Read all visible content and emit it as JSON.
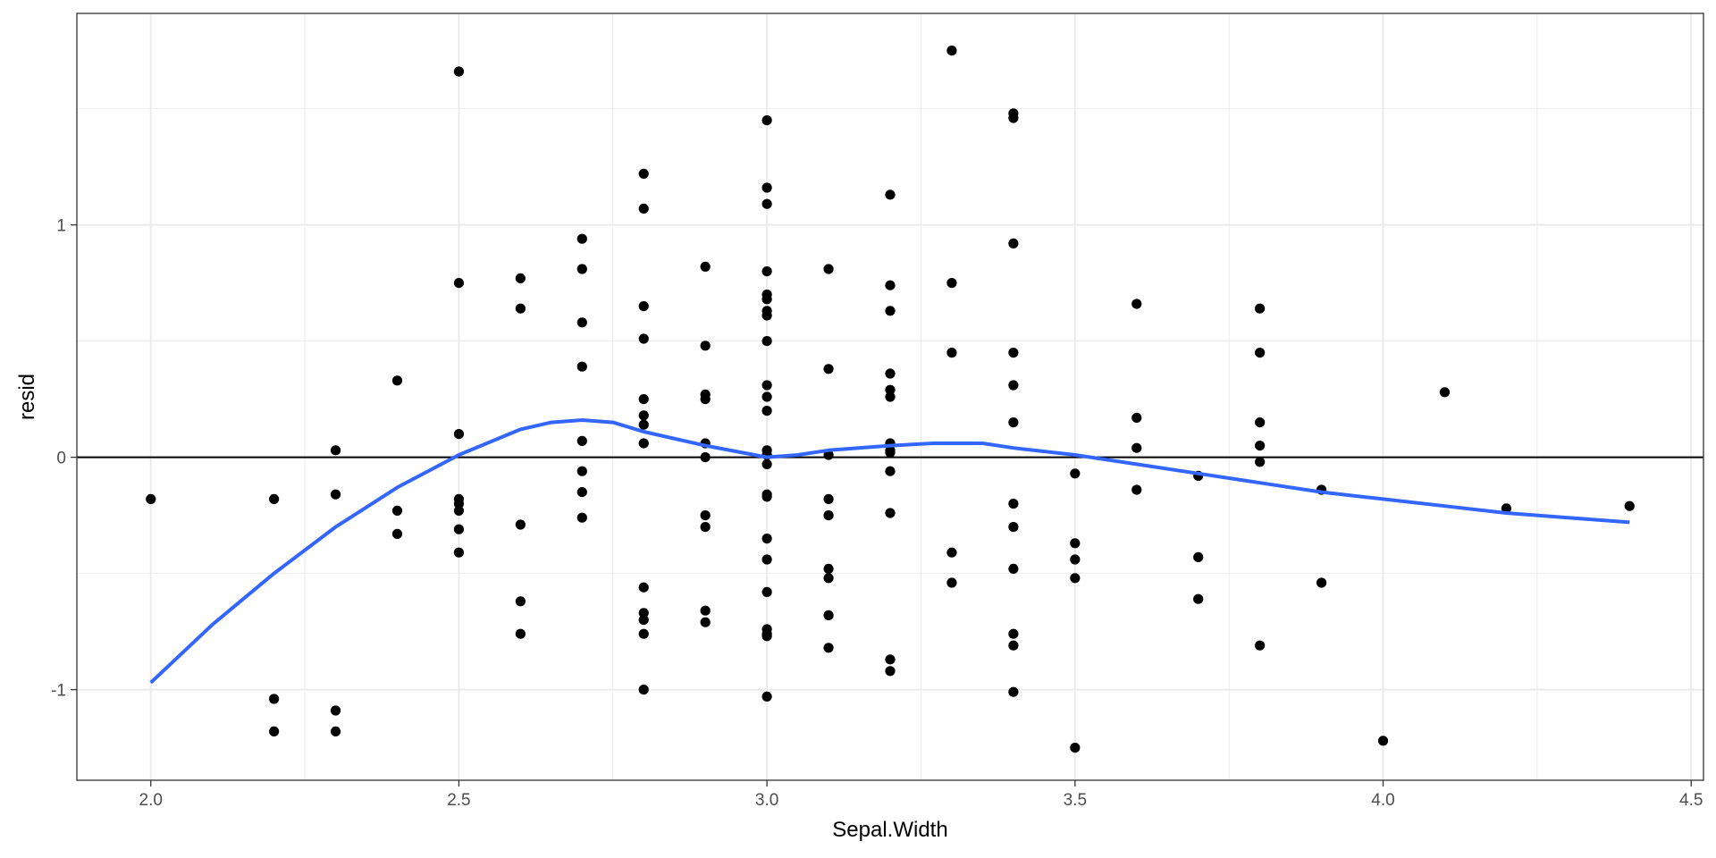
{
  "chart_data": {
    "type": "scatter",
    "title": "",
    "xlabel": "Sepal.Width",
    "ylabel": "resid",
    "xlim": [
      1.88,
      4.52
    ],
    "ylim": [
      -1.39,
      1.91
    ],
    "x_ticks": [
      2.0,
      2.5,
      3.0,
      3.5,
      4.0,
      4.5
    ],
    "x_tick_labels": [
      "2.0",
      "2.5",
      "3.0",
      "3.5",
      "4.0",
      "4.5"
    ],
    "y_ticks": [
      -1,
      0,
      1
    ],
    "y_tick_labels": [
      "-1",
      "0",
      "1"
    ],
    "grid": true,
    "reference_line_y": 0,
    "colors": {
      "points": "#000000",
      "smooth": "#3366ff",
      "grid": "#ebebeb",
      "refline": "#000000"
    },
    "series": [
      {
        "type": "scatter",
        "points": [
          [
            2.0,
            -0.18
          ],
          [
            2.2,
            -0.18
          ],
          [
            2.2,
            -1.04
          ],
          [
            2.2,
            -1.18
          ],
          [
            2.3,
            0.03
          ],
          [
            2.3,
            -0.16
          ],
          [
            2.3,
            -1.09
          ],
          [
            2.3,
            -1.18
          ],
          [
            2.4,
            0.33
          ],
          [
            2.4,
            -0.23
          ],
          [
            2.4,
            -0.33
          ],
          [
            2.5,
            1.66
          ],
          [
            2.5,
            0.75
          ],
          [
            2.5,
            0.1
          ],
          [
            2.5,
            -0.18
          ],
          [
            2.5,
            -0.2
          ],
          [
            2.5,
            -0.23
          ],
          [
            2.5,
            -0.31
          ],
          [
            2.5,
            -0.41
          ],
          [
            2.6,
            0.77
          ],
          [
            2.6,
            0.64
          ],
          [
            2.6,
            -0.29
          ],
          [
            2.6,
            -0.62
          ],
          [
            2.6,
            -0.76
          ],
          [
            2.7,
            0.94
          ],
          [
            2.7,
            0.81
          ],
          [
            2.7,
            0.58
          ],
          [
            2.7,
            0.39
          ],
          [
            2.7,
            0.07
          ],
          [
            2.7,
            -0.06
          ],
          [
            2.7,
            -0.15
          ],
          [
            2.7,
            -0.26
          ],
          [
            2.8,
            1.22
          ],
          [
            2.8,
            1.07
          ],
          [
            2.8,
            0.65
          ],
          [
            2.8,
            0.51
          ],
          [
            2.8,
            0.25
          ],
          [
            2.8,
            0.18
          ],
          [
            2.8,
            0.14
          ],
          [
            2.8,
            0.06
          ],
          [
            2.8,
            -0.56
          ],
          [
            2.8,
            -0.67
          ],
          [
            2.8,
            -0.7
          ],
          [
            2.8,
            -0.76
          ],
          [
            2.8,
            -1.0
          ],
          [
            2.9,
            0.82
          ],
          [
            2.9,
            0.48
          ],
          [
            2.9,
            0.27
          ],
          [
            2.9,
            0.25
          ],
          [
            2.9,
            0.06
          ],
          [
            2.9,
            0.0
          ],
          [
            2.9,
            -0.25
          ],
          [
            2.9,
            -0.3
          ],
          [
            2.9,
            -0.66
          ],
          [
            2.9,
            -0.71
          ],
          [
            3.0,
            1.45
          ],
          [
            3.0,
            1.16
          ],
          [
            3.0,
            1.09
          ],
          [
            3.0,
            0.8
          ],
          [
            3.0,
            0.7
          ],
          [
            3.0,
            0.68
          ],
          [
            3.0,
            0.63
          ],
          [
            3.0,
            0.61
          ],
          [
            3.0,
            0.5
          ],
          [
            3.0,
            0.31
          ],
          [
            3.0,
            0.26
          ],
          [
            3.0,
            0.2
          ],
          [
            3.0,
            0.03
          ],
          [
            3.0,
            0.01
          ],
          [
            3.0,
            -0.03
          ],
          [
            3.0,
            -0.16
          ],
          [
            3.0,
            -0.17
          ],
          [
            3.0,
            -0.35
          ],
          [
            3.0,
            -0.44
          ],
          [
            3.0,
            -0.58
          ],
          [
            3.0,
            -0.74
          ],
          [
            3.0,
            -0.76
          ],
          [
            3.0,
            -0.77
          ],
          [
            3.0,
            -1.03
          ],
          [
            3.1,
            0.81
          ],
          [
            3.1,
            0.38
          ],
          [
            3.1,
            0.01
          ],
          [
            3.1,
            -0.18
          ],
          [
            3.1,
            -0.25
          ],
          [
            3.1,
            -0.48
          ],
          [
            3.1,
            -0.52
          ],
          [
            3.1,
            -0.68
          ],
          [
            3.1,
            -0.82
          ],
          [
            3.2,
            1.13
          ],
          [
            3.2,
            0.74
          ],
          [
            3.2,
            0.63
          ],
          [
            3.2,
            0.36
          ],
          [
            3.2,
            0.29
          ],
          [
            3.2,
            0.26
          ],
          [
            3.2,
            0.06
          ],
          [
            3.2,
            0.03
          ],
          [
            3.2,
            0.02
          ],
          [
            3.2,
            -0.06
          ],
          [
            3.2,
            -0.24
          ],
          [
            3.2,
            -0.87
          ],
          [
            3.2,
            -0.92
          ],
          [
            3.3,
            1.75
          ],
          [
            3.3,
            0.75
          ],
          [
            3.3,
            0.45
          ],
          [
            3.3,
            -0.41
          ],
          [
            3.3,
            -0.54
          ],
          [
            3.4,
            1.48
          ],
          [
            3.4,
            1.46
          ],
          [
            3.4,
            0.92
          ],
          [
            3.4,
            0.45
          ],
          [
            3.4,
            0.31
          ],
          [
            3.4,
            0.15
          ],
          [
            3.4,
            -0.2
          ],
          [
            3.4,
            -0.3
          ],
          [
            3.4,
            -0.48
          ],
          [
            3.4,
            -0.76
          ],
          [
            3.4,
            -0.81
          ],
          [
            3.4,
            -1.01
          ],
          [
            3.5,
            -0.07
          ],
          [
            3.5,
            -0.37
          ],
          [
            3.5,
            -0.44
          ],
          [
            3.5,
            -0.52
          ],
          [
            3.5,
            -1.25
          ],
          [
            3.6,
            0.66
          ],
          [
            3.6,
            0.17
          ],
          [
            3.6,
            0.04
          ],
          [
            3.6,
            -0.14
          ],
          [
            3.7,
            -0.08
          ],
          [
            3.7,
            -0.43
          ],
          [
            3.7,
            -0.61
          ],
          [
            3.8,
            0.64
          ],
          [
            3.8,
            0.45
          ],
          [
            3.8,
            0.15
          ],
          [
            3.8,
            0.05
          ],
          [
            3.8,
            -0.02
          ],
          [
            3.8,
            -0.81
          ],
          [
            3.9,
            -0.14
          ],
          [
            3.9,
            -0.54
          ],
          [
            4.0,
            -1.22
          ],
          [
            4.1,
            0.28
          ],
          [
            4.2,
            -0.22
          ],
          [
            4.4,
            -0.21
          ]
        ]
      },
      {
        "type": "line",
        "points": [
          [
            2.0,
            -0.97
          ],
          [
            2.1,
            -0.72
          ],
          [
            2.2,
            -0.5
          ],
          [
            2.3,
            -0.3
          ],
          [
            2.4,
            -0.13
          ],
          [
            2.5,
            0.01
          ],
          [
            2.6,
            0.12
          ],
          [
            2.65,
            0.15
          ],
          [
            2.7,
            0.16
          ],
          [
            2.75,
            0.15
          ],
          [
            2.8,
            0.11
          ],
          [
            2.9,
            0.05
          ],
          [
            3.0,
            0.0
          ],
          [
            3.05,
            0.01
          ],
          [
            3.1,
            0.03
          ],
          [
            3.2,
            0.05
          ],
          [
            3.27,
            0.06
          ],
          [
            3.35,
            0.06
          ],
          [
            3.4,
            0.04
          ],
          [
            3.5,
            0.01
          ],
          [
            3.6,
            -0.03
          ],
          [
            3.7,
            -0.07
          ],
          [
            3.8,
            -0.11
          ],
          [
            3.9,
            -0.15
          ],
          [
            4.0,
            -0.18
          ],
          [
            4.1,
            -0.21
          ],
          [
            4.2,
            -0.24
          ],
          [
            4.3,
            -0.26
          ],
          [
            4.4,
            -0.28
          ]
        ]
      }
    ]
  }
}
